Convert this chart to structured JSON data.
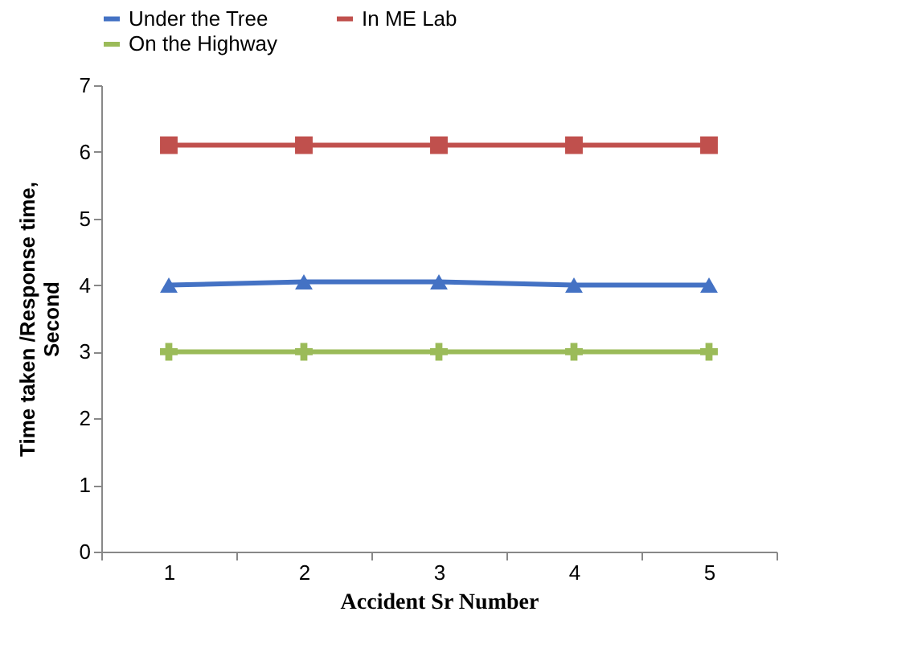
{
  "chart_data": {
    "type": "line",
    "xlabel": "Accident Sr Number",
    "ylabel": "Time taken /Response time, Second",
    "categories": [
      "1",
      "2",
      "3",
      "4",
      "5"
    ],
    "series": [
      {
        "name": "Under the Tree",
        "color": "#4472c4",
        "marker": "triangle",
        "values": [
          4.0,
          4.05,
          4.05,
          4.0,
          4.0
        ]
      },
      {
        "name": "In ME Lab",
        "color": "#c0504d",
        "marker": "square",
        "values": [
          6.1,
          6.1,
          6.1,
          6.1,
          6.1
        ]
      },
      {
        "name": "On the Highway",
        "color": "#9bbb59",
        "marker": "cross",
        "values": [
          3.0,
          3.0,
          3.0,
          3.0,
          3.0
        ]
      }
    ],
    "ylim": [
      0,
      7
    ],
    "yticks": [
      0,
      1,
      2,
      3,
      4,
      5,
      6,
      7
    ],
    "grid": false,
    "legend": "top"
  }
}
